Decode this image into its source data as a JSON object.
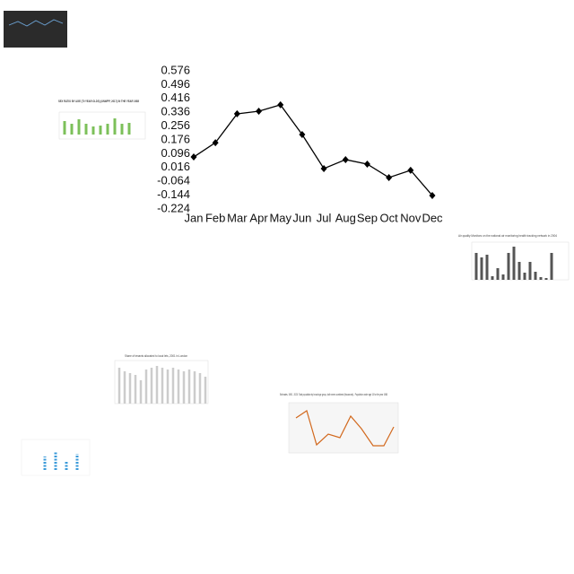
{
  "chart_data": {
    "type": "line",
    "categories": [
      "Jan",
      "Feb",
      "Mar",
      "Apr",
      "May",
      "Jun",
      "Jul",
      "Aug",
      "Sep",
      "Oct",
      "Nov",
      "Dec"
    ],
    "values": [
      0.077,
      0.16,
      0.327,
      0.342,
      0.379,
      0.207,
      0.01,
      0.062,
      0.036,
      -0.042,
      0,
      -0.146
    ],
    "color": "#000000",
    "ylim": [
      -0.224,
      0.576
    ],
    "yticks": [
      -0.224,
      -0.144,
      -0.064,
      0.016,
      0.096,
      0.176,
      0.256,
      0.336,
      0.416,
      0.496,
      0.576
    ],
    "grid": false
  },
  "thumbnails": [
    {
      "title": "SEX RATIO BY AGE (70 YEAR OLDS) (UNWPP, 2017) IN THE YEAR 1985"
    },
    {
      "title": "Air quality Monitors on the national air monitoring health tracking network in 2004"
    },
    {
      "title": "Share of tenants allocated to local lets, 2001 in London"
    },
    {
      "title": "Estimates, 1950 - 2020: Total population by broad age group, both sexes combined (thousands) - Population under age 15 for the year 1980"
    }
  ]
}
